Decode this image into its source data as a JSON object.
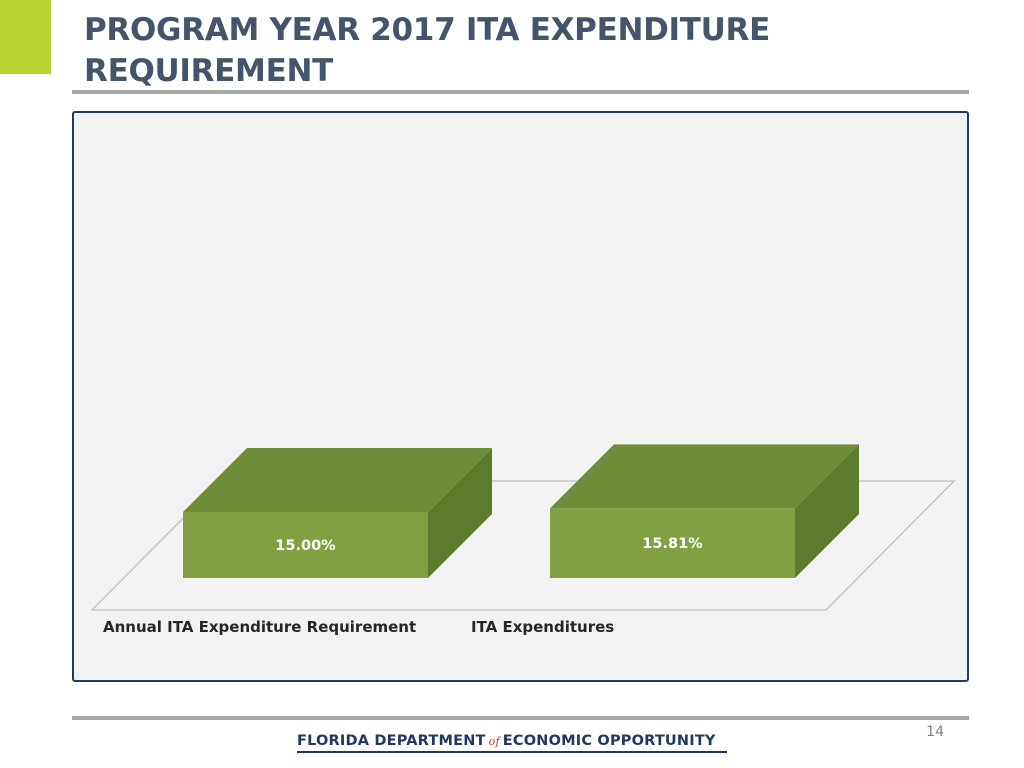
{
  "slide": {
    "title": "PROGRAM YEAR 2017 ITA EXPENDITURE REQUIREMENT",
    "page_number": "14"
  },
  "footer": {
    "logo_part1": "FLORIDA DEPARTMENT",
    "logo_of": "of",
    "logo_part2": "ECONOMIC OPPORTUNITY"
  },
  "colors": {
    "title": "#44546a",
    "accent": "#b9d432",
    "bar_front": "#82a042",
    "bar_top": "#6f8c38",
    "bar_side": "#5e7a2e",
    "frame": "#1f3864"
  },
  "chart_data": {
    "type": "bar",
    "style": "3d",
    "categories": [
      "Annual ITA Expenditure Requirement",
      "ITA Expenditures"
    ],
    "values": [
      15.0,
      15.81
    ],
    "data_labels": [
      "15.00%",
      "15.81%"
    ],
    "grid": false,
    "legend": "none",
    "value_axis_visible": false
  }
}
